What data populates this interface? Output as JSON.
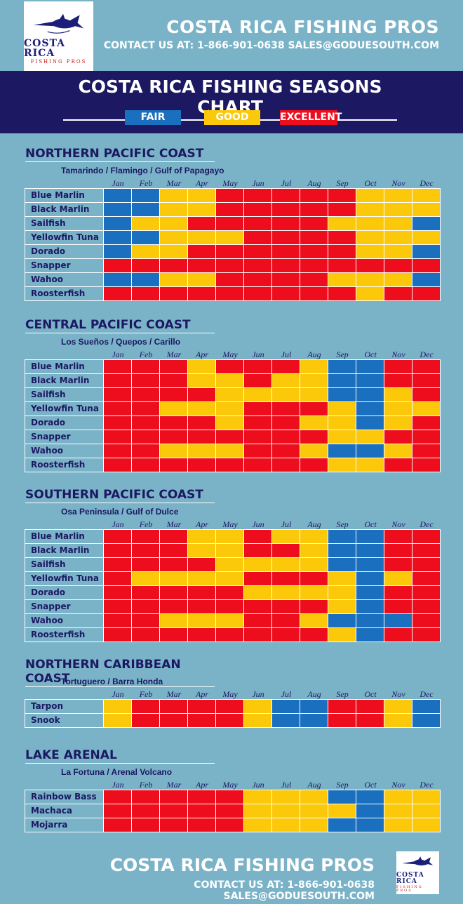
{
  "colors": {
    "fair": "#1a6fbe",
    "good": "#fcc80a",
    "excellent": "#ee0d1c"
  },
  "brand": {
    "logo_text_1": "COSTA RICA",
    "logo_text_2": "FISHING PROS",
    "name": "COSTA RICA FISHING PROS",
    "contact": "CONTACT US AT: 1-866-901-0638  SALES@GODUESOUTH.COM"
  },
  "banner": {
    "title": "COSTA RICA FISHING SEASONS CHART"
  },
  "legend": [
    {
      "label": "FAIR",
      "level": "fair"
    },
    {
      "label": "GOOD",
      "level": "good"
    },
    {
      "label": "EXCELLENT",
      "level": "excellent"
    }
  ],
  "months": [
    "Jan",
    "Feb",
    "Mar",
    "Apr",
    "May",
    "Jun",
    "Jul",
    "Aug",
    "Sep",
    "Oct",
    "Nov",
    "Dec"
  ],
  "sections": [
    {
      "title": "NORTHERN PACIFIC COAST",
      "subtitle": "Tamarindo / Flamingo / Gulf of Papagayo",
      "rows": [
        {
          "fish": "Blue Marlin",
          "levels": "FFGGEEEEEGGG"
        },
        {
          "fish": "Black Marlin",
          "levels": "FFGGEEEEEGGG"
        },
        {
          "fish": "Sailfish",
          "levels": "FGGEEEEEGGGF"
        },
        {
          "fish": "Yellowfin Tuna",
          "levels": "FFGGGEEEEGGG"
        },
        {
          "fish": "Dorado",
          "levels": "FGGEEEEEEGGF"
        },
        {
          "fish": "Snapper",
          "levels": "EEEEEEEEEEEE"
        },
        {
          "fish": "Wahoo",
          "levels": "FFGGEEEEGGGF"
        },
        {
          "fish": "Roosterfish",
          "levels": "EEEEEEEEEGEE"
        }
      ]
    },
    {
      "title": "CENTRAL PACIFIC COAST",
      "subtitle": "Los Sueños / Quepos / Carillo",
      "rows": [
        {
          "fish": "Blue Marlin",
          "levels": "EEEGEEEGFFEE"
        },
        {
          "fish": "Black Marlin",
          "levels": "EEEGGEGGFFEE"
        },
        {
          "fish": "Sailfish",
          "levels": "EEEEGGGGFFGE"
        },
        {
          "fish": "Yellowfin Tuna",
          "levels": "EEGGGEEEGFGG"
        },
        {
          "fish": "Dorado",
          "levels": "EEEEGEEGGFGE"
        },
        {
          "fish": "Snapper",
          "levels": "EEEEEEEEGGEE"
        },
        {
          "fish": "Wahoo",
          "levels": "EEGGGEEGFFGE"
        },
        {
          "fish": "Roosterfish",
          "levels": "EEEEEEEEGGEE"
        }
      ]
    },
    {
      "title": "SOUTHERN PACIFIC COAST",
      "subtitle": "Osa Peninsula / Gulf of Dulce",
      "rows": [
        {
          "fish": "Blue Marlin",
          "levels": "EEEGGEGGFFEE"
        },
        {
          "fish": "Black Marlin",
          "levels": "EEEGGEEGFFEE"
        },
        {
          "fish": "Sailfish",
          "levels": "EEEEGGGGFFEE"
        },
        {
          "fish": "Yellowfin Tuna",
          "levels": "EGGGGEEEGFGE"
        },
        {
          "fish": "Dorado",
          "levels": "EEEEEGGGGFEE"
        },
        {
          "fish": "Snapper",
          "levels": "EEEEEEEEGFEE"
        },
        {
          "fish": "Wahoo",
          "levels": "EEGGGEEGFFFE"
        },
        {
          "fish": "Roosterfish",
          "levels": "EEEEEEEEGFEE"
        }
      ]
    },
    {
      "title": "NORTHERN CARIBBEAN COAST",
      "subtitle": "Tortuguero / Barra Honda",
      "rows": [
        {
          "fish": "Tarpon",
          "levels": "GEEEEGFFEEGF"
        },
        {
          "fish": "Snook",
          "levels": "GEEEEGFFEEGF"
        }
      ]
    },
    {
      "title": "LAKE ARENAL",
      "subtitle": "La Fortuna / Arenal Volcano",
      "rows": [
        {
          "fish": "Rainbow Bass",
          "levels": "EEEEEGGGFFGG"
        },
        {
          "fish": "Machaca",
          "levels": "EEEEEGGGGFGG"
        },
        {
          "fish": "Mojarra",
          "levels": "EEEEEGGGFFGG"
        }
      ]
    }
  ]
}
